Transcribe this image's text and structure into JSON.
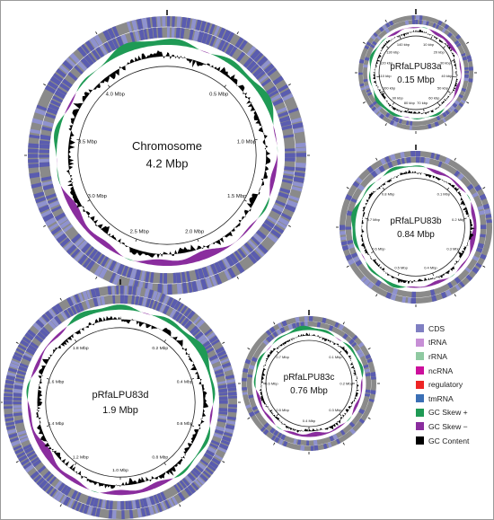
{
  "maps": [
    {
      "id": "chromosome",
      "name": "Chromosome",
      "size": "4.2 Mbp",
      "ticks": [
        "0.5 Mbp",
        "1.0 Mbp",
        "1.5 Mbp",
        "2.0 Mbp",
        "2.5 Mbp",
        "3.0 Mbp",
        "3.5 Mbp",
        "4.0 Mbp"
      ]
    },
    {
      "id": "plasmid-a",
      "name": "pRfaLPU83a",
      "size": "0.15 Mbp",
      "ticks": [
        "10 kbp",
        "20 kbp",
        "30 kbp",
        "40 kbp",
        "50 kbp",
        "60 kbp",
        "70 kbp",
        "80 kbp",
        "90 kbp",
        "100 kbp",
        "110 kbp",
        "120 kbp",
        "130 kbp",
        "140 kbp"
      ]
    },
    {
      "id": "plasmid-b",
      "name": "pRfaLPU83b",
      "size": "0.84 Mbp",
      "ticks": [
        "0.1 Mbp",
        "0.2 Mbp",
        "0.3 Mbp",
        "0.4 Mbp",
        "0.5 Mbp",
        "0.6 Mbp",
        "0.7 Mbp",
        "0.8 Mbp"
      ]
    },
    {
      "id": "plasmid-c",
      "name": "pRfaLPU83c",
      "size": "0.76 Mbp",
      "ticks": [
        "0.1 Mbp",
        "0.2 Mbp",
        "0.3 Mbp",
        "0.4 Mbp",
        "0.5 Mbp",
        "0.6 Mbp",
        "0.7 Mbp"
      ]
    },
    {
      "id": "plasmid-d",
      "name": "pRfaLPU83d",
      "size": "1.9 Mbp",
      "ticks": [
        "0.2 Mbp",
        "0.4 Mbp",
        "0.6 Mbp",
        "0.8 Mbp",
        "1.0 Mbp",
        "1.2 Mbp",
        "1.4 Mbp",
        "1.6 Mbp",
        "1.8 Mbp"
      ]
    }
  ],
  "legend": [
    {
      "label": "CDS",
      "color": "#7f7fc2"
    },
    {
      "label": "tRNA",
      "color": "#c78fd6"
    },
    {
      "label": "rRNA",
      "color": "#8fc9a1"
    },
    {
      "label": "ncRNA",
      "color": "#cc0f9c"
    },
    {
      "label": "regulatory",
      "color": "#ee2424"
    },
    {
      "label": "tmRNA",
      "color": "#3a6fb5"
    },
    {
      "label": "GC Skew +",
      "color": "#1f9a55"
    },
    {
      "label": "GC Skew −",
      "color": "#8a2d9e"
    },
    {
      "label": "GC Content",
      "color": "#000000"
    }
  ],
  "colors": {
    "cds": "#5a5cb0",
    "cds_light": "#8f92cf",
    "backbone": "#8a8a8a",
    "gc_skew_pos": "#1f9a55",
    "gc_skew_neg": "#8a2d9e",
    "gc_content": "#000000"
  }
}
